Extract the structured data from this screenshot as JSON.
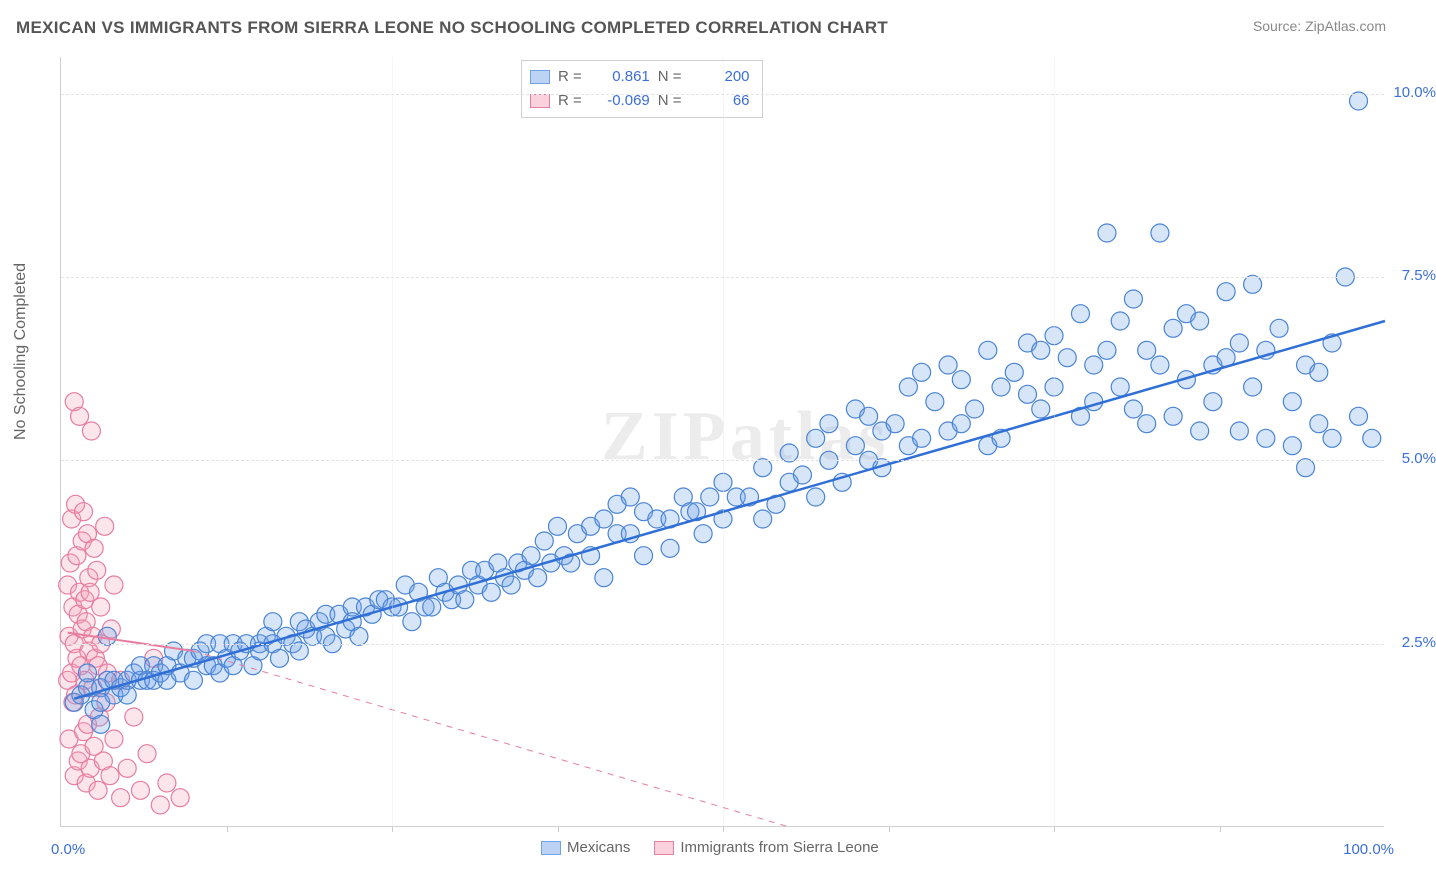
{
  "title": "MEXICAN VS IMMIGRANTS FROM SIERRA LEONE NO SCHOOLING COMPLETED CORRELATION CHART",
  "source": "Source: ZipAtlas.com",
  "ylabel": "No Schooling Completed",
  "watermark": "ZIPatlas",
  "chart": {
    "type": "scatter",
    "background_color": "#ffffff",
    "grid_color": "#e3e3e3",
    "xlim": [
      0,
      100
    ],
    "ylim": [
      0,
      10.5
    ],
    "xtick_step": 12.5,
    "ytick_step": 2.5,
    "ytick_labels": [
      "2.5%",
      "5.0%",
      "7.5%",
      "10.0%"
    ],
    "xtick_left_label": "0.0%",
    "xtick_right_label": "100.0%",
    "marker_radius": 9,
    "marker_stroke_width": 1.2,
    "marker_fill_opacity": 0.28,
    "trend_line_width": 2.5,
    "trend_dash_width": 1,
    "series": [
      {
        "name": "Mexicans",
        "color_fill": "#6fa3e8",
        "color_stroke": "#4a84d6",
        "trend_color": "#2f6fd6",
        "R": "0.861",
        "N": "200",
        "trend": {
          "x1": 1,
          "y1": 1.75,
          "x2": 100,
          "y2": 6.9
        },
        "points": [
          [
            1,
            1.7
          ],
          [
            1.5,
            1.8
          ],
          [
            2,
            1.9
          ],
          [
            2,
            2.1
          ],
          [
            2.5,
            1.6
          ],
          [
            3,
            1.4
          ],
          [
            3,
            1.9
          ],
          [
            3,
            1.7
          ],
          [
            3.5,
            2.0
          ],
          [
            3.5,
            2.6
          ],
          [
            4,
            1.8
          ],
          [
            4,
            2.0
          ],
          [
            4.5,
            1.9
          ],
          [
            5,
            2.0
          ],
          [
            5,
            1.8
          ],
          [
            5.5,
            2.1
          ],
          [
            6,
            2.0
          ],
          [
            6,
            2.2
          ],
          [
            6.5,
            2.0
          ],
          [
            7,
            2.2
          ],
          [
            7,
            2.0
          ],
          [
            7.5,
            2.1
          ],
          [
            8,
            2.2
          ],
          [
            8,
            2.0
          ],
          [
            8.5,
            2.4
          ],
          [
            9,
            2.1
          ],
          [
            9.5,
            2.3
          ],
          [
            10,
            2.0
          ],
          [
            10,
            2.3
          ],
          [
            10.5,
            2.4
          ],
          [
            11,
            2.2
          ],
          [
            11,
            2.5
          ],
          [
            11.5,
            2.2
          ],
          [
            12,
            2.1
          ],
          [
            12,
            2.5
          ],
          [
            12.5,
            2.3
          ],
          [
            13,
            2.5
          ],
          [
            13,
            2.2
          ],
          [
            13.5,
            2.4
          ],
          [
            14,
            2.5
          ],
          [
            14.5,
            2.2
          ],
          [
            15,
            2.5
          ],
          [
            15,
            2.4
          ],
          [
            15.5,
            2.6
          ],
          [
            16,
            2.5
          ],
          [
            16,
            2.8
          ],
          [
            16.5,
            2.3
          ],
          [
            17,
            2.6
          ],
          [
            17.5,
            2.5
          ],
          [
            18,
            2.8
          ],
          [
            18,
            2.4
          ],
          [
            18.5,
            2.7
          ],
          [
            19,
            2.6
          ],
          [
            19.5,
            2.8
          ],
          [
            20,
            2.6
          ],
          [
            20,
            2.9
          ],
          [
            20.5,
            2.5
          ],
          [
            21,
            2.9
          ],
          [
            21.5,
            2.7
          ],
          [
            22,
            3.0
          ],
          [
            22,
            2.8
          ],
          [
            22.5,
            2.6
          ],
          [
            23,
            3.0
          ],
          [
            23.5,
            2.9
          ],
          [
            24,
            3.1
          ],
          [
            24.5,
            3.1
          ],
          [
            25,
            3.0
          ],
          [
            25.5,
            3.0
          ],
          [
            26,
            3.3
          ],
          [
            26.5,
            2.8
          ],
          [
            27,
            3.2
          ],
          [
            27.5,
            3.0
          ],
          [
            28,
            3.0
          ],
          [
            28.5,
            3.4
          ],
          [
            29,
            3.2
          ],
          [
            29.5,
            3.1
          ],
          [
            30,
            3.3
          ],
          [
            30.5,
            3.1
          ],
          [
            31,
            3.5
          ],
          [
            31.5,
            3.3
          ],
          [
            32,
            3.5
          ],
          [
            32.5,
            3.2
          ],
          [
            33,
            3.6
          ],
          [
            33.5,
            3.4
          ],
          [
            34,
            3.3
          ],
          [
            34.5,
            3.6
          ],
          [
            35,
            3.5
          ],
          [
            35.5,
            3.7
          ],
          [
            36,
            3.4
          ],
          [
            36.5,
            3.9
          ],
          [
            37,
            3.6
          ],
          [
            37.5,
            4.1
          ],
          [
            38,
            3.7
          ],
          [
            38.5,
            3.6
          ],
          [
            39,
            4.0
          ],
          [
            40,
            3.7
          ],
          [
            40,
            4.1
          ],
          [
            41,
            3.4
          ],
          [
            41,
            4.2
          ],
          [
            42,
            4.0
          ],
          [
            42,
            4.4
          ],
          [
            43,
            4.5
          ],
          [
            43,
            4.0
          ],
          [
            44,
            3.7
          ],
          [
            44,
            4.3
          ],
          [
            45,
            4.2
          ],
          [
            46,
            4.2
          ],
          [
            46,
            3.8
          ],
          [
            47,
            4.5
          ],
          [
            47.5,
            4.3
          ],
          [
            48,
            4.3
          ],
          [
            48.5,
            4.0
          ],
          [
            49,
            4.5
          ],
          [
            50,
            4.2
          ],
          [
            50,
            4.7
          ],
          [
            51,
            4.5
          ],
          [
            52,
            4.5
          ],
          [
            53,
            4.9
          ],
          [
            53,
            4.2
          ],
          [
            54,
            4.4
          ],
          [
            55,
            4.7
          ],
          [
            55,
            5.1
          ],
          [
            56,
            4.8
          ],
          [
            57,
            4.5
          ],
          [
            57,
            5.3
          ],
          [
            58,
            5.0
          ],
          [
            58,
            5.5
          ],
          [
            59,
            4.7
          ],
          [
            60,
            5.2
          ],
          [
            60,
            5.7
          ],
          [
            61,
            5.0
          ],
          [
            61,
            5.6
          ],
          [
            62,
            4.9
          ],
          [
            62,
            5.4
          ],
          [
            63,
            5.5
          ],
          [
            64,
            5.2
          ],
          [
            64,
            6.0
          ],
          [
            65,
            5.3
          ],
          [
            65,
            6.2
          ],
          [
            66,
            5.8
          ],
          [
            67,
            5.4
          ],
          [
            67,
            6.3
          ],
          [
            68,
            5.5
          ],
          [
            68,
            6.1
          ],
          [
            69,
            5.7
          ],
          [
            70,
            5.2
          ],
          [
            70,
            6.5
          ],
          [
            71,
            6.0
          ],
          [
            71,
            5.3
          ],
          [
            72,
            6.2
          ],
          [
            73,
            5.9
          ],
          [
            73,
            6.6
          ],
          [
            74,
            6.5
          ],
          [
            74,
            5.7
          ],
          [
            75,
            6.0
          ],
          [
            75,
            6.7
          ],
          [
            76,
            6.4
          ],
          [
            77,
            5.6
          ],
          [
            77,
            7.0
          ],
          [
            78,
            5.8
          ],
          [
            78,
            6.3
          ],
          [
            79,
            6.5
          ],
          [
            79,
            8.1
          ],
          [
            80,
            6.0
          ],
          [
            80,
            6.9
          ],
          [
            81,
            5.7
          ],
          [
            81,
            7.2
          ],
          [
            82,
            5.5
          ],
          [
            82,
            6.5
          ],
          [
            83,
            6.3
          ],
          [
            83,
            8.1
          ],
          [
            84,
            5.6
          ],
          [
            84,
            6.8
          ],
          [
            85,
            6.1
          ],
          [
            85,
            7.0
          ],
          [
            86,
            5.4
          ],
          [
            86,
            6.9
          ],
          [
            87,
            6.3
          ],
          [
            87,
            5.8
          ],
          [
            88,
            6.4
          ],
          [
            88,
            7.3
          ],
          [
            89,
            5.4
          ],
          [
            89,
            6.6
          ],
          [
            90,
            6.0
          ],
          [
            90,
            7.4
          ],
          [
            91,
            5.3
          ],
          [
            91,
            6.5
          ],
          [
            92,
            6.8
          ],
          [
            93,
            5.2
          ],
          [
            93,
            5.8
          ],
          [
            94,
            4.9
          ],
          [
            94,
            6.3
          ],
          [
            95,
            6.2
          ],
          [
            95,
            5.5
          ],
          [
            96,
            6.6
          ],
          [
            96,
            5.3
          ],
          [
            97,
            7.5
          ],
          [
            98,
            5.6
          ],
          [
            98,
            9.9
          ],
          [
            99,
            5.3
          ]
        ]
      },
      {
        "name": "Immigrants from Sierra Leone",
        "color_fill": "#f4a6ba",
        "color_stroke": "#e87da0",
        "trend_color": "#e87da0",
        "R": "-0.069",
        "N": "66",
        "trend_solid": {
          "x1": 0.5,
          "y1": 2.65,
          "x2": 10,
          "y2": 2.4
        },
        "trend_dash": {
          "x1": 10,
          "y1": 2.4,
          "x2": 55,
          "y2": 0.0
        },
        "points": [
          [
            0.5,
            2.0
          ],
          [
            0.5,
            3.3
          ],
          [
            0.6,
            2.6
          ],
          [
            0.6,
            1.2
          ],
          [
            0.7,
            3.6
          ],
          [
            0.8,
            2.1
          ],
          [
            0.8,
            4.2
          ],
          [
            0.9,
            1.7
          ],
          [
            0.9,
            3.0
          ],
          [
            1.0,
            5.8
          ],
          [
            1.0,
            2.5
          ],
          [
            1.0,
            0.7
          ],
          [
            1.1,
            4.4
          ],
          [
            1.1,
            1.8
          ],
          [
            1.2,
            3.7
          ],
          [
            1.2,
            2.3
          ],
          [
            1.3,
            2.9
          ],
          [
            1.3,
            0.9
          ],
          [
            1.4,
            5.6
          ],
          [
            1.4,
            3.2
          ],
          [
            1.5,
            2.2
          ],
          [
            1.5,
            1.0
          ],
          [
            1.6,
            3.9
          ],
          [
            1.6,
            2.7
          ],
          [
            1.7,
            1.3
          ],
          [
            1.7,
            4.3
          ],
          [
            1.8,
            2.0
          ],
          [
            1.8,
            3.1
          ],
          [
            1.9,
            0.6
          ],
          [
            1.9,
            2.8
          ],
          [
            2.0,
            4.0
          ],
          [
            2.0,
            1.4
          ],
          [
            2.1,
            3.4
          ],
          [
            2.1,
            2.4
          ],
          [
            2.2,
            3.2
          ],
          [
            2.2,
            0.8
          ],
          [
            2.3,
            5.4
          ],
          [
            2.4,
            1.9
          ],
          [
            2.4,
            2.6
          ],
          [
            2.5,
            3.8
          ],
          [
            2.5,
            1.1
          ],
          [
            2.6,
            2.3
          ],
          [
            2.7,
            3.5
          ],
          [
            2.8,
            0.5
          ],
          [
            2.8,
            2.2
          ],
          [
            2.9,
            1.5
          ],
          [
            3.0,
            3.0
          ],
          [
            3.0,
            2.5
          ],
          [
            3.2,
            0.9
          ],
          [
            3.3,
            4.1
          ],
          [
            3.4,
            1.7
          ],
          [
            3.5,
            2.1
          ],
          [
            3.7,
            0.7
          ],
          [
            3.8,
            2.7
          ],
          [
            4.0,
            1.2
          ],
          [
            4.0,
            3.3
          ],
          [
            4.5,
            0.4
          ],
          [
            4.5,
            2.0
          ],
          [
            5.0,
            0.8
          ],
          [
            5.5,
            1.5
          ],
          [
            6.0,
            0.5
          ],
          [
            6.5,
            1.0
          ],
          [
            7.0,
            2.3
          ],
          [
            7.5,
            0.3
          ],
          [
            8.0,
            0.6
          ],
          [
            9.0,
            0.4
          ]
        ]
      }
    ]
  },
  "statbox": {
    "rows": [
      {
        "swatch_fill": "#bcd3f3",
        "swatch_border": "#6fa3e8",
        "R_label": "R =",
        "R_val": "0.861",
        "N_label": "N =",
        "N_val": "200"
      },
      {
        "swatch_fill": "#f9d2dd",
        "swatch_border": "#e87da0",
        "R_label": "R =",
        "R_val": "-0.069",
        "N_label": "N =",
        "N_val": "66"
      }
    ]
  },
  "bottom_legend": [
    {
      "swatch_fill": "#bcd3f3",
      "swatch_border": "#6fa3e8",
      "label": "Mexicans"
    },
    {
      "swatch_fill": "#f9d2dd",
      "swatch_border": "#e87da0",
      "label": "Immigrants from Sierra Leone"
    }
  ]
}
